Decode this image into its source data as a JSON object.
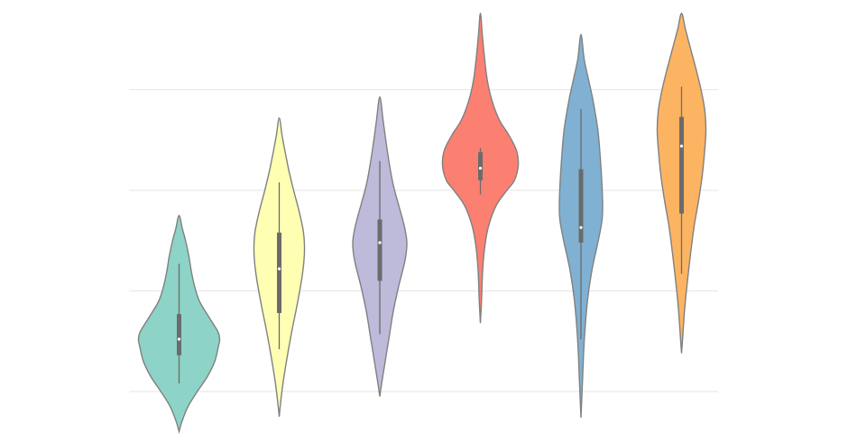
{
  "chart_data": {
    "type": "violin",
    "title": "",
    "xlabel": "",
    "ylabel": "",
    "ylim": [
      0,
      4.2
    ],
    "grid": "horizontal",
    "legend": "none",
    "y_gridlines": [
      0,
      1,
      2,
      3,
      4,
      4.85
    ],
    "series": [
      {
        "color": "#8dd3c7",
        "range": [
          -0.4,
          1.75
        ],
        "whisker": [
          0.08,
          1.27
        ],
        "quartiles": [
          0.36,
          0.77
        ],
        "median": 0.52,
        "profile": [
          [
            -0.4,
            0
          ],
          [
            -0.3,
            0.07
          ],
          [
            -0.15,
            0.22
          ],
          [
            0,
            0.45
          ],
          [
            0.15,
            0.7
          ],
          [
            0.3,
            0.88
          ],
          [
            0.45,
            0.97
          ],
          [
            0.52,
            1.0
          ],
          [
            0.6,
            0.95
          ],
          [
            0.75,
            0.72
          ],
          [
            0.9,
            0.5
          ],
          [
            1.05,
            0.38
          ],
          [
            1.2,
            0.3
          ],
          [
            1.35,
            0.24
          ],
          [
            1.5,
            0.16
          ],
          [
            1.62,
            0.08
          ],
          [
            1.75,
            0
          ]
        ]
      },
      {
        "color": "#ffffb3",
        "range": [
          -0.25,
          2.72
        ],
        "whisker": [
          0.42,
          2.08
        ],
        "quartiles": [
          0.78,
          1.58
        ],
        "median": 1.22,
        "profile": [
          [
            -0.25,
            0
          ],
          [
            -0.1,
            0.06
          ],
          [
            0.1,
            0.16
          ],
          [
            0.35,
            0.32
          ],
          [
            0.6,
            0.5
          ],
          [
            0.85,
            0.7
          ],
          [
            1.1,
            0.88
          ],
          [
            1.3,
            0.98
          ],
          [
            1.45,
            1.0
          ],
          [
            1.6,
            0.95
          ],
          [
            1.8,
            0.78
          ],
          [
            2.0,
            0.57
          ],
          [
            2.2,
            0.38
          ],
          [
            2.4,
            0.22
          ],
          [
            2.55,
            0.11
          ],
          [
            2.72,
            0
          ]
        ]
      },
      {
        "color": "#bebada",
        "range": [
          -0.05,
          2.93
        ],
        "whisker": [
          0.57,
          2.29
        ],
        "quartiles": [
          1.1,
          1.71
        ],
        "median": 1.48,
        "profile": [
          [
            -0.05,
            0
          ],
          [
            0.1,
            0.08
          ],
          [
            0.3,
            0.2
          ],
          [
            0.55,
            0.35
          ],
          [
            0.8,
            0.5
          ],
          [
            1.05,
            0.7
          ],
          [
            1.3,
            0.93
          ],
          [
            1.48,
            1.0
          ],
          [
            1.65,
            0.9
          ],
          [
            1.85,
            0.7
          ],
          [
            2.05,
            0.5
          ],
          [
            2.25,
            0.36
          ],
          [
            2.5,
            0.22
          ],
          [
            2.7,
            0.12
          ],
          [
            2.93,
            0
          ]
        ]
      },
      {
        "color": "#fb8072",
        "range": [
          0.68,
          3.76
        ],
        "whisker": [
          1.96,
          2.42
        ],
        "quartiles": [
          2.1,
          2.38
        ],
        "median": 2.22,
        "profile": [
          [
            0.68,
            0
          ],
          [
            0.9,
            0.03
          ],
          [
            1.2,
            0.06
          ],
          [
            1.45,
            0.12
          ],
          [
            1.65,
            0.22
          ],
          [
            1.85,
            0.42
          ],
          [
            2.0,
            0.7
          ],
          [
            2.1,
            0.9
          ],
          [
            2.25,
            1.0
          ],
          [
            2.4,
            0.95
          ],
          [
            2.55,
            0.75
          ],
          [
            2.7,
            0.5
          ],
          [
            2.9,
            0.3
          ],
          [
            3.1,
            0.18
          ],
          [
            3.35,
            0.1
          ],
          [
            3.55,
            0.05
          ],
          [
            3.76,
            0
          ]
        ]
      },
      {
        "color": "#80b1d3",
        "range": [
          -0.26,
          3.55
        ],
        "whisker": [
          0.52,
          2.81
        ],
        "quartiles": [
          1.48,
          2.21
        ],
        "median": 1.63,
        "profile": [
          [
            -0.26,
            0
          ],
          [
            0.1,
            0.07
          ],
          [
            0.5,
            0.15
          ],
          [
            0.9,
            0.3
          ],
          [
            1.2,
            0.5
          ],
          [
            1.5,
            0.8
          ],
          [
            1.7,
            0.97
          ],
          [
            1.85,
            1.0
          ],
          [
            2.05,
            0.97
          ],
          [
            2.3,
            0.9
          ],
          [
            2.6,
            0.78
          ],
          [
            2.9,
            0.55
          ],
          [
            3.1,
            0.35
          ],
          [
            3.3,
            0.15
          ],
          [
            3.55,
            0
          ]
        ]
      },
      {
        "color": "#fdb462",
        "range": [
          0.38,
          3.76
        ],
        "whisker": [
          1.17,
          3.03
        ],
        "quartiles": [
          1.77,
          2.73
        ],
        "median": 2.44,
        "profile": [
          [
            0.38,
            0
          ],
          [
            0.55,
            0.05
          ],
          [
            0.8,
            0.12
          ],
          [
            1.05,
            0.22
          ],
          [
            1.35,
            0.36
          ],
          [
            1.65,
            0.52
          ],
          [
            1.9,
            0.7
          ],
          [
            2.15,
            0.85
          ],
          [
            2.4,
            0.95
          ],
          [
            2.6,
            1.0
          ],
          [
            2.8,
            0.95
          ],
          [
            3.0,
            0.8
          ],
          [
            3.2,
            0.6
          ],
          [
            3.4,
            0.38
          ],
          [
            3.6,
            0.16
          ],
          [
            3.76,
            0
          ]
        ]
      }
    ]
  }
}
